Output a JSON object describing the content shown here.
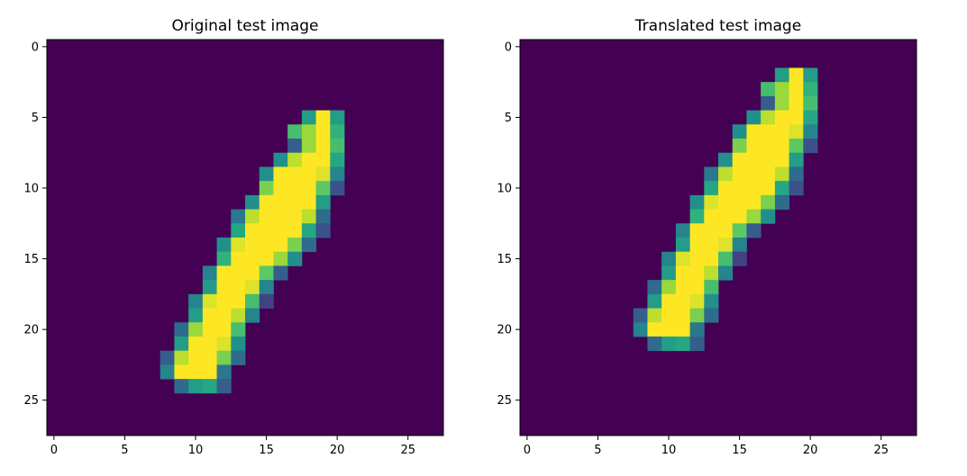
{
  "chart_data": [
    {
      "type": "heatmap",
      "title": "Original test image",
      "xlabel": "",
      "ylabel": "",
      "xlim": [
        -0.5,
        27.5
      ],
      "ylim": [
        27.5,
        -0.5
      ],
      "x_ticks": [
        0,
        5,
        10,
        15,
        20,
        25
      ],
      "y_ticks": [
        0,
        5,
        10,
        15,
        20,
        25
      ],
      "x_tick_labels": [
        "0",
        "5",
        "10",
        "15",
        "20",
        "25"
      ],
      "y_tick_labels": [
        "0",
        "5",
        "10",
        "15",
        "20",
        "25"
      ],
      "grid": false,
      "colormap": "viridis",
      "value_range": [
        0,
        1
      ],
      "background_value": 0,
      "rows": 28,
      "cols": 28,
      "pixels": [
        {
          "row": 5,
          "values": {
            "18": 0.55,
            "19": 1.0,
            "20": 0.55
          }
        },
        {
          "row": 6,
          "values": {
            "17": 0.7,
            "18": 0.85,
            "19": 1.0,
            "20": 0.65
          }
        },
        {
          "row": 7,
          "values": {
            "17": 0.3,
            "18": 0.85,
            "19": 1.0,
            "20": 0.7
          }
        },
        {
          "row": 8,
          "values": {
            "16": 0.5,
            "17": 0.9,
            "18": 1.0,
            "19": 1.0,
            "20": 0.6
          }
        },
        {
          "row": 9,
          "values": {
            "15": 0.5,
            "16": 1.0,
            "17": 1.0,
            "18": 1.0,
            "19": 0.95,
            "20": 0.45
          }
        },
        {
          "row": 10,
          "values": {
            "15": 0.8,
            "16": 1.0,
            "17": 1.0,
            "18": 1.0,
            "19": 0.75,
            "20": 0.25
          }
        },
        {
          "row": 11,
          "values": {
            "14": 0.5,
            "15": 1.0,
            "16": 1.0,
            "17": 1.0,
            "18": 1.0,
            "19": 0.55
          }
        },
        {
          "row": 12,
          "values": {
            "13": 0.4,
            "14": 0.9,
            "15": 1.0,
            "16": 1.0,
            "17": 1.0,
            "18": 0.9,
            "19": 0.35
          }
        },
        {
          "row": 13,
          "values": {
            "13": 0.6,
            "14": 1.0,
            "15": 1.0,
            "16": 1.0,
            "17": 1.0,
            "18": 0.6,
            "19": 0.25
          }
        },
        {
          "row": 14,
          "values": {
            "12": 0.5,
            "13": 0.95,
            "14": 1.0,
            "15": 1.0,
            "16": 1.0,
            "17": 0.8,
            "18": 0.35
          }
        },
        {
          "row": 15,
          "values": {
            "12": 0.65,
            "13": 1.0,
            "14": 1.0,
            "15": 1.0,
            "16": 0.85,
            "17": 0.5
          }
        },
        {
          "row": 16,
          "values": {
            "11": 0.45,
            "12": 1.0,
            "13": 1.0,
            "14": 1.0,
            "15": 0.75,
            "16": 0.3
          }
        },
        {
          "row": 17,
          "values": {
            "11": 0.55,
            "12": 1.0,
            "13": 1.0,
            "14": 0.95,
            "15": 0.45
          }
        },
        {
          "row": 18,
          "values": {
            "10": 0.45,
            "11": 0.95,
            "12": 1.0,
            "13": 1.0,
            "14": 0.7,
            "15": 0.2
          }
        },
        {
          "row": 19,
          "values": {
            "10": 0.55,
            "11": 1.0,
            "12": 1.0,
            "13": 0.9,
            "14": 0.45
          }
        },
        {
          "row": 20,
          "values": {
            "9": 0.35,
            "10": 0.85,
            "11": 1.0,
            "12": 1.0,
            "13": 0.7
          }
        },
        {
          "row": 21,
          "values": {
            "9": 0.55,
            "10": 1.0,
            "11": 1.0,
            "12": 0.95,
            "13": 0.5
          }
        },
        {
          "row": 22,
          "values": {
            "8": 0.3,
            "9": 0.9,
            "10": 1.0,
            "11": 1.0,
            "12": 0.8,
            "13": 0.35
          }
        },
        {
          "row": 23,
          "values": {
            "8": 0.45,
            "9": 1.0,
            "10": 1.0,
            "11": 1.0,
            "12": 0.4
          }
        },
        {
          "row": 24,
          "values": {
            "9": 0.35,
            "10": 0.55,
            "11": 0.6,
            "12": 0.3
          }
        }
      ]
    },
    {
      "type": "heatmap",
      "title": "Translated test image",
      "xlabel": "",
      "ylabel": "",
      "xlim": [
        -0.5,
        27.5
      ],
      "ylim": [
        27.5,
        -0.5
      ],
      "x_ticks": [
        0,
        5,
        10,
        15,
        20,
        25
      ],
      "y_ticks": [
        0,
        5,
        10,
        15,
        20,
        25
      ],
      "x_tick_labels": [
        "0",
        "5",
        "10",
        "15",
        "20",
        "25"
      ],
      "y_tick_labels": [
        "0",
        "5",
        "10",
        "15",
        "20",
        "25"
      ],
      "grid": false,
      "colormap": "viridis",
      "value_range": [
        0,
        1
      ],
      "background_value": 0,
      "rows": 28,
      "cols": 28,
      "pixels": [
        {
          "row": 2,
          "values": {
            "18": 0.55,
            "19": 1.0,
            "20": 0.55
          }
        },
        {
          "row": 3,
          "values": {
            "17": 0.7,
            "18": 0.85,
            "19": 1.0,
            "20": 0.65
          }
        },
        {
          "row": 4,
          "values": {
            "17": 0.3,
            "18": 0.85,
            "19": 1.0,
            "20": 0.7
          }
        },
        {
          "row": 5,
          "values": {
            "16": 0.5,
            "17": 0.9,
            "18": 1.0,
            "19": 1.0,
            "20": 0.6
          }
        },
        {
          "row": 6,
          "values": {
            "15": 0.5,
            "16": 1.0,
            "17": 1.0,
            "18": 1.0,
            "19": 0.95,
            "20": 0.45
          }
        },
        {
          "row": 7,
          "values": {
            "15": 0.8,
            "16": 1.0,
            "17": 1.0,
            "18": 1.0,
            "19": 0.75,
            "20": 0.25
          }
        },
        {
          "row": 8,
          "values": {
            "14": 0.5,
            "15": 1.0,
            "16": 1.0,
            "17": 1.0,
            "18": 1.0,
            "19": 0.55
          }
        },
        {
          "row": 9,
          "values": {
            "13": 0.4,
            "14": 0.9,
            "15": 1.0,
            "16": 1.0,
            "17": 1.0,
            "18": 0.9,
            "19": 0.35
          }
        },
        {
          "row": 10,
          "values": {
            "13": 0.6,
            "14": 1.0,
            "15": 1.0,
            "16": 1.0,
            "17": 1.0,
            "18": 0.6,
            "19": 0.25
          }
        },
        {
          "row": 11,
          "values": {
            "12": 0.5,
            "13": 0.95,
            "14": 1.0,
            "15": 1.0,
            "16": 1.0,
            "17": 0.8,
            "18": 0.35
          }
        },
        {
          "row": 12,
          "values": {
            "12": 0.65,
            "13": 1.0,
            "14": 1.0,
            "15": 1.0,
            "16": 0.85,
            "17": 0.5
          }
        },
        {
          "row": 13,
          "values": {
            "11": 0.45,
            "12": 1.0,
            "13": 1.0,
            "14": 1.0,
            "15": 0.75,
            "16": 0.3
          }
        },
        {
          "row": 14,
          "values": {
            "11": 0.55,
            "12": 1.0,
            "13": 1.0,
            "14": 0.95,
            "15": 0.45
          }
        },
        {
          "row": 15,
          "values": {
            "10": 0.45,
            "11": 0.95,
            "12": 1.0,
            "13": 1.0,
            "14": 0.7,
            "15": 0.2
          }
        },
        {
          "row": 16,
          "values": {
            "10": 0.55,
            "11": 1.0,
            "12": 1.0,
            "13": 0.9,
            "14": 0.45
          }
        },
        {
          "row": 17,
          "values": {
            "9": 0.35,
            "10": 0.85,
            "11": 1.0,
            "12": 1.0,
            "13": 0.7
          }
        },
        {
          "row": 18,
          "values": {
            "9": 0.55,
            "10": 1.0,
            "11": 1.0,
            "12": 0.95,
            "13": 0.5
          }
        },
        {
          "row": 19,
          "values": {
            "8": 0.3,
            "9": 0.9,
            "10": 1.0,
            "11": 1.0,
            "12": 0.8,
            "13": 0.35
          }
        },
        {
          "row": 20,
          "values": {
            "8": 0.45,
            "9": 1.0,
            "10": 1.0,
            "11": 1.0,
            "12": 0.4
          }
        },
        {
          "row": 21,
          "values": {
            "9": 0.35,
            "10": 0.55,
            "11": 0.6,
            "12": 0.3
          }
        }
      ]
    }
  ]
}
